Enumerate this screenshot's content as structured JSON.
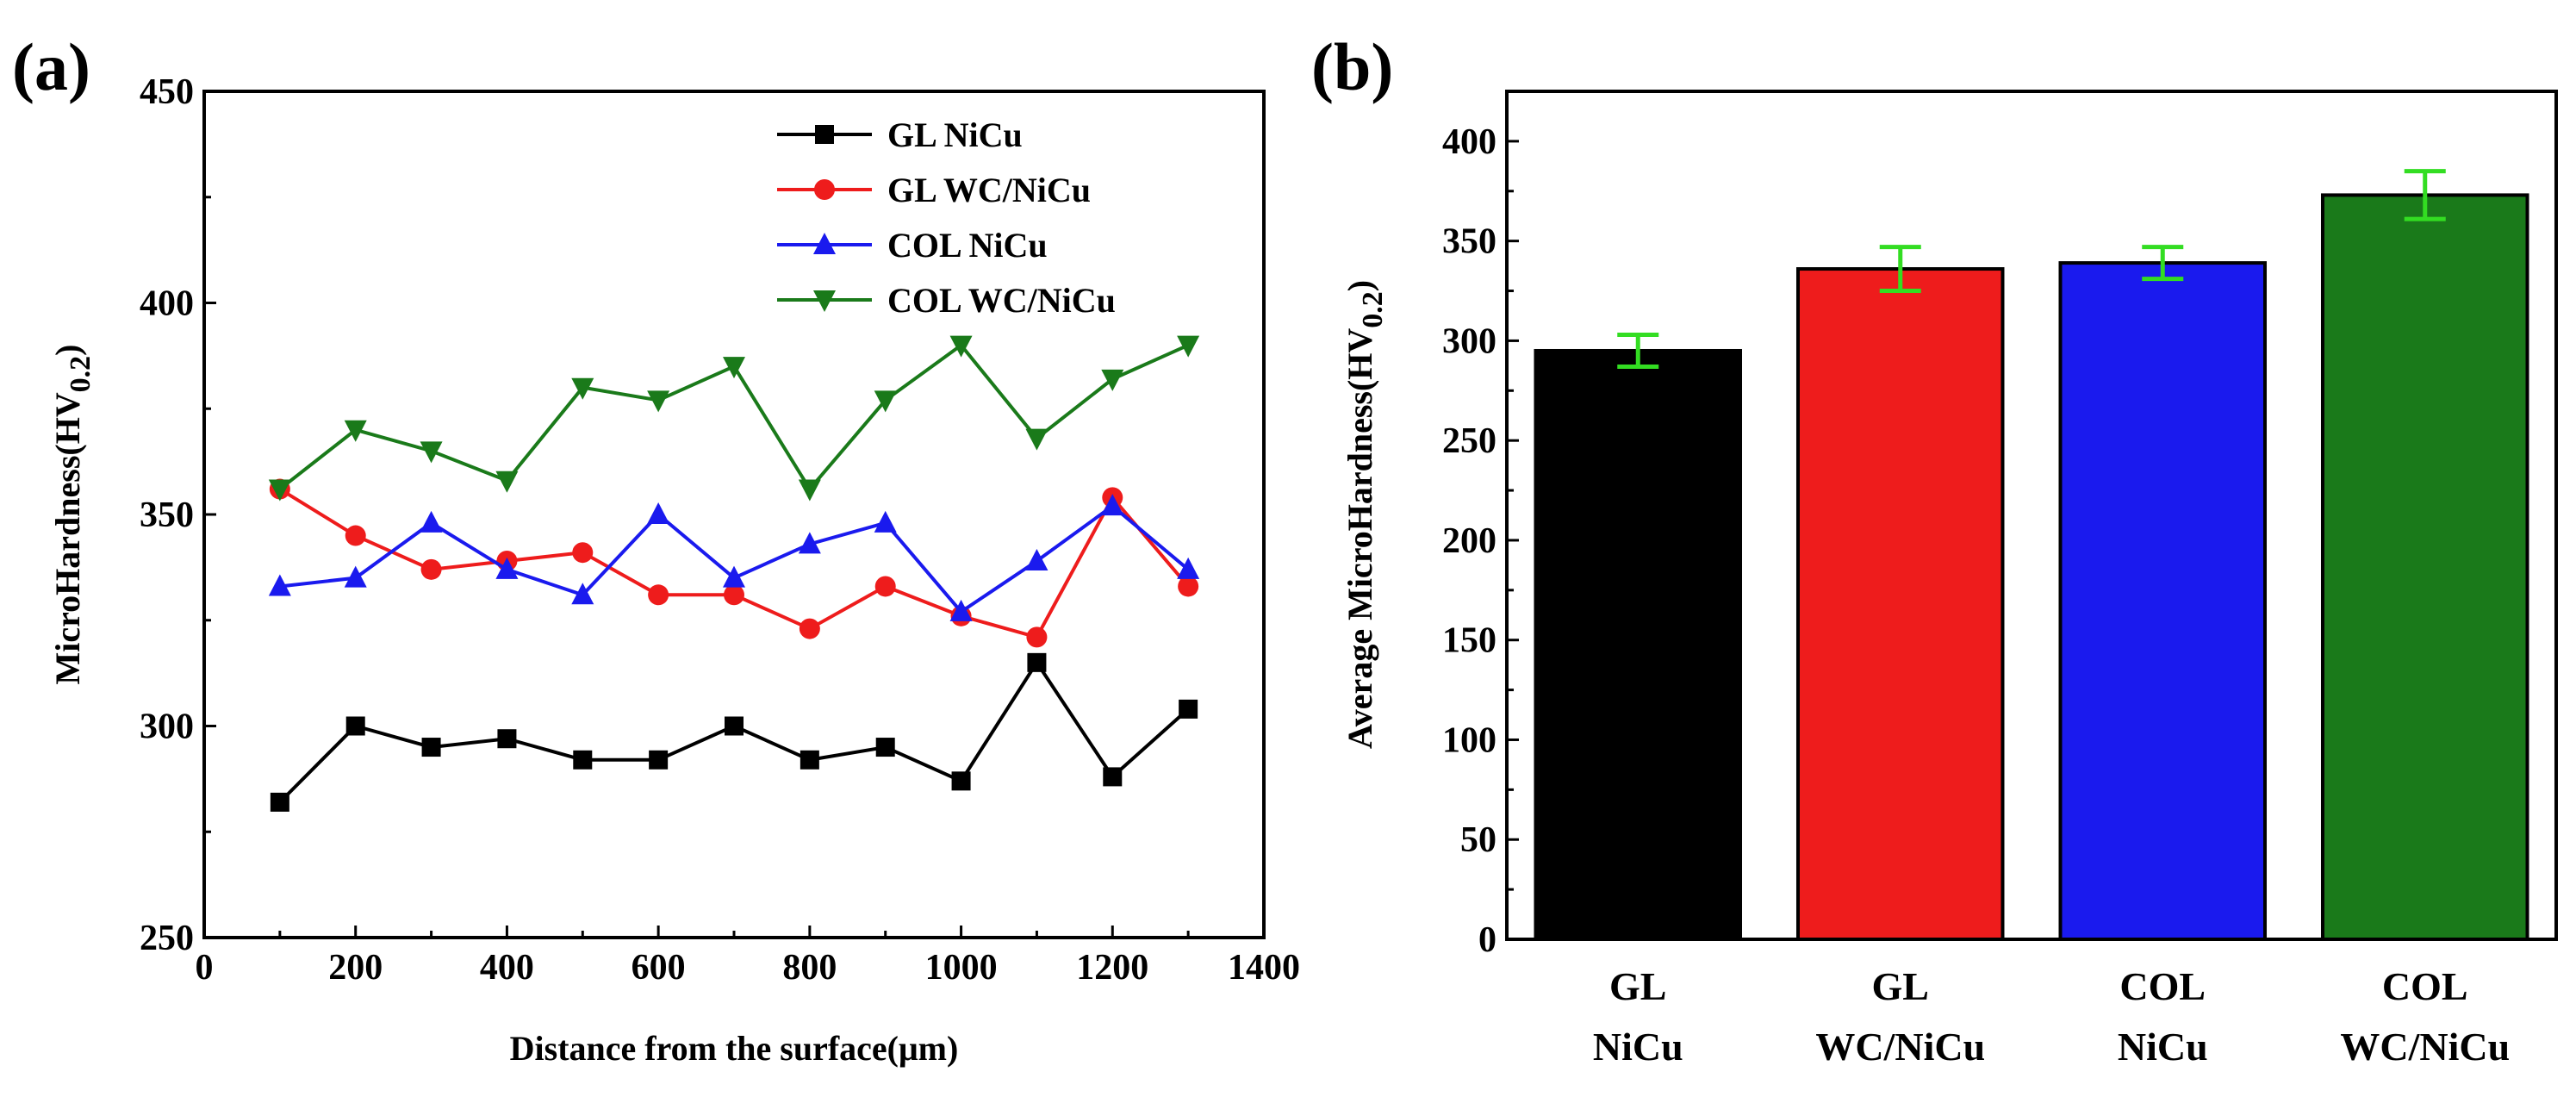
{
  "chart_data": [
    {
      "panel": "(a)",
      "type": "line",
      "xlabel": "Distance from the surface(μm)",
      "ylabel_main": "MicroHardness(HV",
      "ylabel_sub": "0.2",
      "ylabel_close": ")",
      "xlim": [
        0,
        1400
      ],
      "ylim": [
        250,
        450
      ],
      "xticks": [
        0,
        200,
        400,
        600,
        800,
        1000,
        1200,
        1400
      ],
      "yticks": [
        250,
        300,
        350,
        400,
        450
      ],
      "x": [
        100,
        200,
        300,
        400,
        500,
        600,
        700,
        800,
        900,
        1000,
        1100,
        1200,
        1300
      ],
      "legend_position": "top-right",
      "series": [
        {
          "name": "GL NiCu",
          "color": "#000000",
          "marker": "square",
          "values": [
            282,
            300,
            295,
            297,
            292,
            292,
            300,
            292,
            295,
            287,
            315,
            288,
            304
          ]
        },
        {
          "name": "GL WC/NiCu",
          "color": "#ee1c1c",
          "marker": "circle",
          "values": [
            356,
            345,
            337,
            339,
            341,
            331,
            331,
            323,
            333,
            326,
            321,
            354,
            333
          ]
        },
        {
          "name": "COL NiCu",
          "color": "#1a1aee",
          "marker": "triangle-up",
          "values": [
            333,
            335,
            348,
            337,
            331,
            350,
            335,
            343,
            348,
            327,
            339,
            352,
            337
          ]
        },
        {
          "name": "COL WC/NiCu",
          "color": "#1a7a1a",
          "marker": "triangle-down",
          "values": [
            356,
            370,
            365,
            358,
            380,
            377,
            385,
            356,
            377,
            390,
            368,
            382,
            390
          ]
        }
      ]
    },
    {
      "panel": "(b)",
      "type": "bar",
      "ylabel_main": "Average MicroHardness(HV",
      "ylabel_sub": "0.2",
      "ylabel_close": ")",
      "ylim": [
        0,
        425
      ],
      "yticks": [
        0,
        50,
        100,
        150,
        200,
        250,
        300,
        350,
        400
      ],
      "categories": [
        {
          "line1": "GL",
          "line2": "NiCu"
        },
        {
          "line1": "GL",
          "line2": "WC/NiCu"
        },
        {
          "line1": "COL",
          "line2": "NiCu"
        },
        {
          "line1": "COL",
          "line2": "WC/NiCu"
        }
      ],
      "values": [
        295,
        336,
        339,
        373
      ],
      "errors": [
        8,
        11,
        8,
        12
      ],
      "colors": [
        "#000000",
        "#ee1c1c",
        "#1a1aee",
        "#1a7a1a"
      ],
      "error_color": "#33dd22"
    }
  ]
}
